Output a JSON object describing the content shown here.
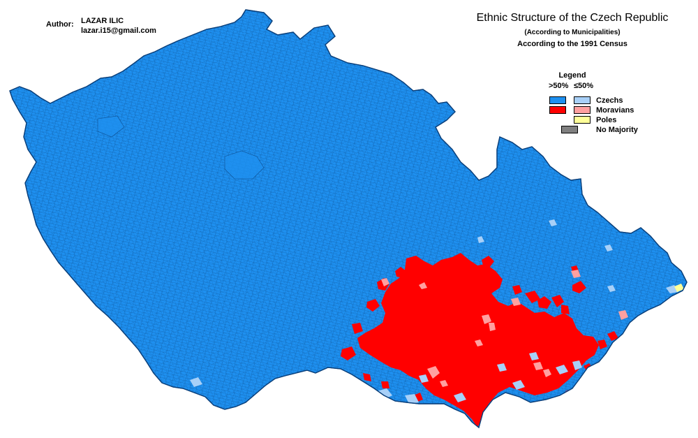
{
  "author": {
    "label": "Author:",
    "name": "LAZAR ILIC",
    "email": "lazar.i15@gmail.com"
  },
  "title": "Ethnic Structure of the Czech Republic",
  "subtitle": "(According to Municipalities)",
  "census": "According to the 1991 Census",
  "legend": {
    "title": "Legend",
    "majority_header": ">50%",
    "plurality_header": "≤50%",
    "groups": [
      {
        "name": "Czechs",
        "majority_color": "#1e90f0",
        "plurality_color": "#a8d0f8"
      },
      {
        "name": "Moravians",
        "majority_color": "#ff0000",
        "plurality_color": "#ffa0a0"
      },
      {
        "name": "Poles",
        "plurality_color": "#ffff99"
      },
      {
        "name": "No Majority",
        "majority_color": "#808080"
      }
    ]
  },
  "colors": {
    "czech_majority": "#1e90f0",
    "czech_plurality": "#a8d0f8",
    "moravian_majority": "#ff0000",
    "moravian_plurality": "#ffa0a0",
    "polish_plurality": "#ffff99",
    "no_majority": "#808080",
    "border": "#0a3f7a"
  }
}
